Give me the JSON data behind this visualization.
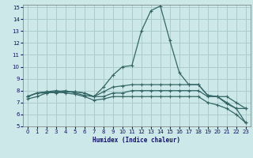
{
  "xlabel": "Humidex (Indice chaleur)",
  "xlim": [
    -0.5,
    23.5
  ],
  "ylim": [
    5,
    15.2
  ],
  "yticks": [
    5,
    6,
    7,
    8,
    9,
    10,
    11,
    12,
    13,
    14,
    15
  ],
  "xticks": [
    0,
    1,
    2,
    3,
    4,
    5,
    6,
    7,
    8,
    9,
    10,
    11,
    12,
    13,
    14,
    15,
    16,
    17,
    18,
    19,
    20,
    21,
    22,
    23
  ],
  "bg_color": "#cce8e8",
  "grid_color": "#aacccc",
  "line_color": "#336666",
  "line1_y": [
    7.5,
    7.8,
    7.9,
    8.0,
    7.9,
    7.9,
    7.8,
    7.5,
    8.3,
    9.3,
    10.0,
    10.1,
    13.0,
    14.7,
    15.1,
    12.2,
    9.5,
    8.5,
    8.5,
    7.6,
    7.5,
    7.0,
    6.5,
    6.5
  ],
  "line2_y": [
    7.5,
    7.8,
    7.9,
    7.8,
    7.9,
    7.9,
    7.8,
    7.5,
    7.9,
    8.3,
    8.4,
    8.5,
    8.5,
    8.5,
    8.5,
    8.5,
    8.5,
    8.5,
    8.5,
    7.6,
    7.5,
    7.5,
    7.0,
    6.5
  ],
  "line3_y": [
    7.5,
    7.8,
    7.8,
    7.9,
    8.0,
    7.8,
    7.6,
    7.5,
    7.5,
    7.8,
    7.8,
    8.0,
    8.0,
    8.0,
    8.0,
    8.0,
    8.0,
    8.0,
    8.0,
    7.5,
    7.5,
    6.9,
    6.5,
    5.3
  ],
  "line4_y": [
    7.3,
    7.5,
    7.8,
    7.9,
    7.8,
    7.7,
    7.5,
    7.2,
    7.3,
    7.5,
    7.5,
    7.5,
    7.5,
    7.5,
    7.5,
    7.5,
    7.5,
    7.5,
    7.5,
    7.0,
    6.8,
    6.5,
    6.0,
    5.3
  ]
}
